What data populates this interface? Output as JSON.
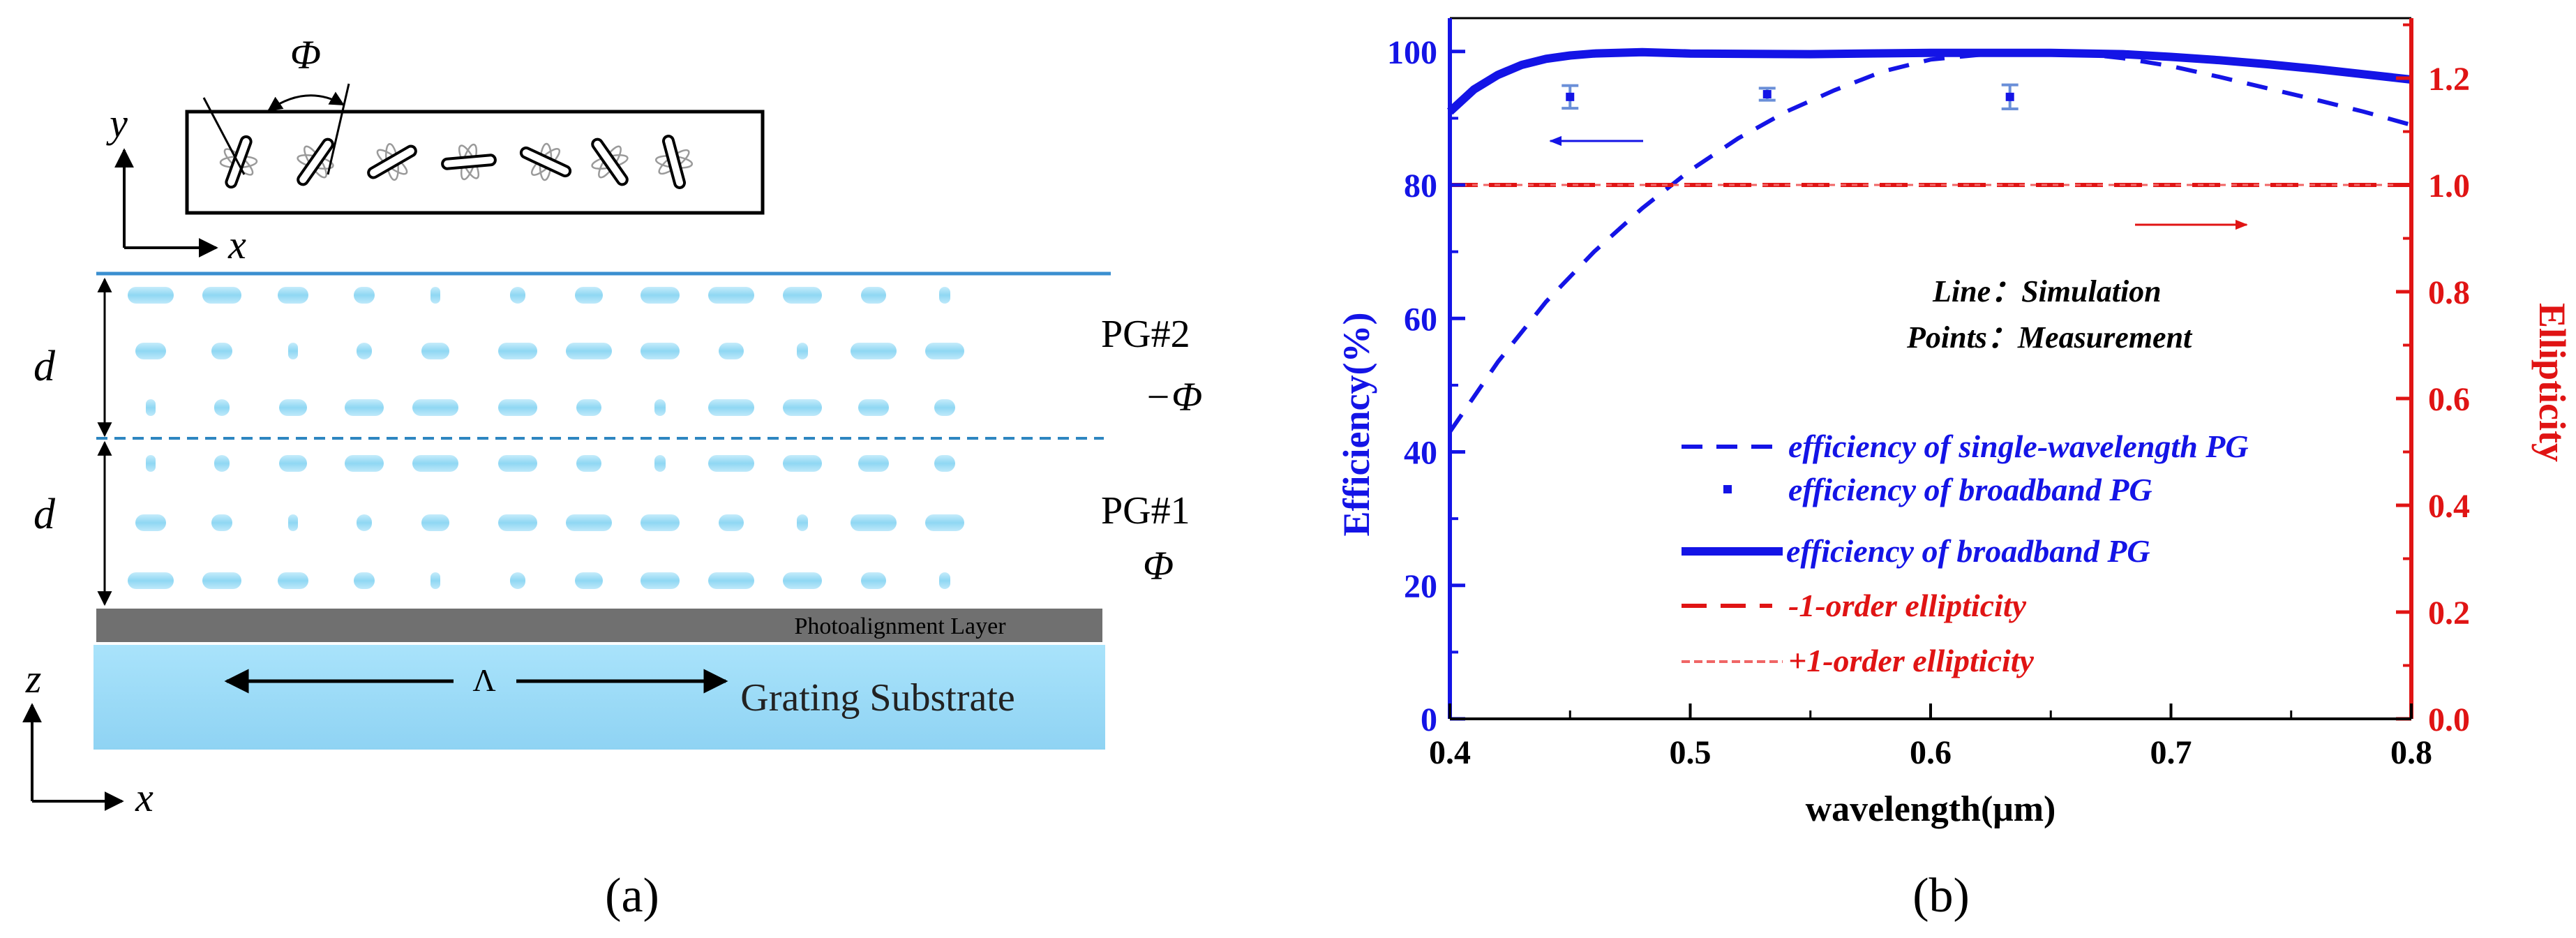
{
  "panel_a": {
    "caption": "(a)",
    "phi_top": "Φ",
    "axis_y": "y",
    "axis_x_top": "x",
    "axis_z": "z",
    "axis_x_bottom": "x",
    "d_top": "d",
    "d_bottom": "d",
    "pg2_label": "PG#2",
    "pg2_angle": "−Φ",
    "pg1_label": "PG#1",
    "pg1_angle": "Φ",
    "alignment_layer": "Photoalignment Layer",
    "lambda": "Λ",
    "substrate": "Grating Substrate",
    "colors": {
      "lc": "#8fd7f3",
      "substrate": "#a6e1fa",
      "alignment": "#707070",
      "boundary": "#2e86c1"
    }
  },
  "panel_b": {
    "caption": "(b)",
    "annotation_line": "Line：Simulation",
    "annotation_points": "Points：Measurement",
    "legend": [
      "efficiency of single-wavelength PG",
      "efficiency of broadband PG",
      "efficiency of broadband PG",
      "-1-order ellipticity",
      "+1-order ellipticity"
    ]
  },
  "chart_data": {
    "type": "line",
    "xlabel": "wavelength(μm)",
    "ylabel": "Efficiency(%)",
    "y2label": "Ellipticity",
    "xlim": [
      0.4,
      0.8
    ],
    "ylim": [
      0,
      105
    ],
    "y2lim": [
      0,
      1.3125
    ],
    "xticks": [
      "0.4",
      "0.5",
      "0.6",
      "0.7",
      "0.8"
    ],
    "yticks": [
      "0",
      "20",
      "40",
      "60",
      "80",
      "100"
    ],
    "y2ticks": [
      "0.0",
      "0.2",
      "0.4",
      "0.6",
      "0.8",
      "1.0",
      "1.2"
    ],
    "series": [
      {
        "name": "efficiency of single-wavelength PG",
        "axis": "left",
        "style": "dashed",
        "color": "#1414e6",
        "x": [
          0.4,
          0.42,
          0.44,
          0.46,
          0.48,
          0.5,
          0.52,
          0.54,
          0.56,
          0.58,
          0.6,
          0.62,
          0.64,
          0.66,
          0.68,
          0.7,
          0.72,
          0.74,
          0.76,
          0.78,
          0.8
        ],
        "y": [
          43,
          53.5,
          62.5,
          70,
          76.5,
          82.2,
          87,
          91,
          94.2,
          97,
          98.8,
          99.5,
          99.8,
          99.8,
          99,
          97.8,
          96.2,
          94.5,
          92.8,
          91,
          89
        ]
      },
      {
        "name": "efficiency of broadband PG",
        "axis": "left",
        "style": "solid",
        "color": "#1414e6",
        "x": [
          0.4,
          0.41,
          0.42,
          0.43,
          0.44,
          0.45,
          0.46,
          0.48,
          0.5,
          0.55,
          0.6,
          0.65,
          0.68,
          0.7,
          0.72,
          0.74,
          0.76,
          0.78,
          0.8
        ],
        "y": [
          91,
          94.3,
          96.5,
          98,
          98.9,
          99.4,
          99.7,
          99.9,
          99.7,
          99.6,
          99.8,
          99.8,
          99.6,
          99.2,
          98.7,
          98.1,
          97.4,
          96.6,
          95.8
        ]
      },
      {
        "name": "efficiency of broadband PG (measurement)",
        "axis": "left",
        "style": "points",
        "color": "#1414e6",
        "x": [
          0.45,
          0.532,
          0.633
        ],
        "y": [
          93.2,
          93.6,
          93.2
        ],
        "err": [
          1.7,
          0.9,
          1.8
        ]
      },
      {
        "name": "-1-order ellipticity",
        "axis": "right",
        "style": "dash",
        "color": "#e01414",
        "x": [
          0.4,
          0.8
        ],
        "y": [
          1.0,
          1.0
        ]
      },
      {
        "name": "+1-order ellipticity",
        "axis": "right",
        "style": "fine-dash",
        "color": "#f06666",
        "x": [
          0.4,
          0.8
        ],
        "y": [
          1.0,
          1.0
        ]
      }
    ]
  }
}
